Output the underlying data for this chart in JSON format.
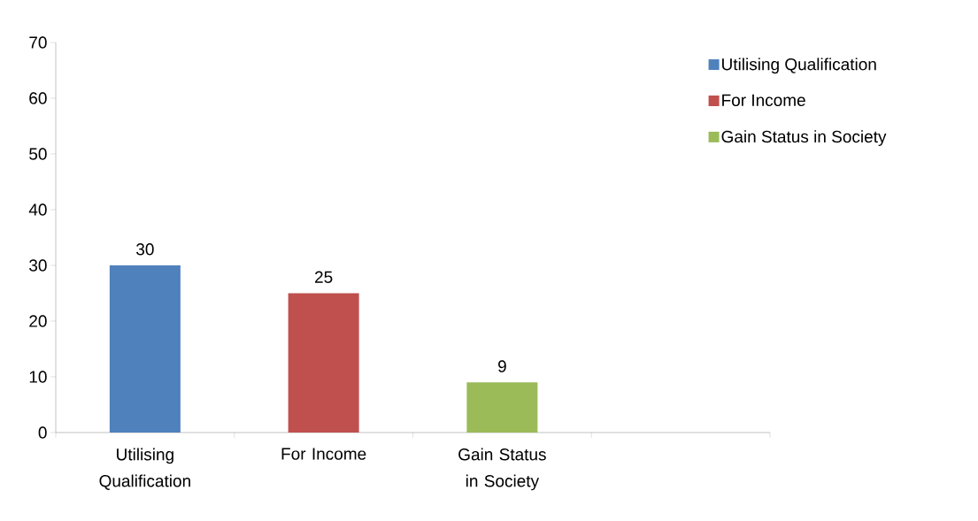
{
  "chart_data": {
    "type": "bar",
    "categories": [
      "Utilising Qualification",
      "For Income",
      "Gain Status in Society",
      null
    ],
    "series": [
      {
        "name": "Utilising Qualification",
        "color": "#4f81bd",
        "values": [
          30,
          null,
          null,
          null
        ]
      },
      {
        "name": "For Income",
        "color": "#c0504d",
        "values": [
          null,
          25,
          null,
          null
        ]
      },
      {
        "name": "Gain Status in Society",
        "color": "#9bbb59",
        "values": [
          null,
          null,
          9,
          null
        ]
      }
    ],
    "ylim": [
      0,
      70
    ],
    "yticks": [
      0,
      10,
      20,
      30,
      40,
      50,
      60,
      70
    ],
    "data_labels": true,
    "legend": "top right"
  }
}
